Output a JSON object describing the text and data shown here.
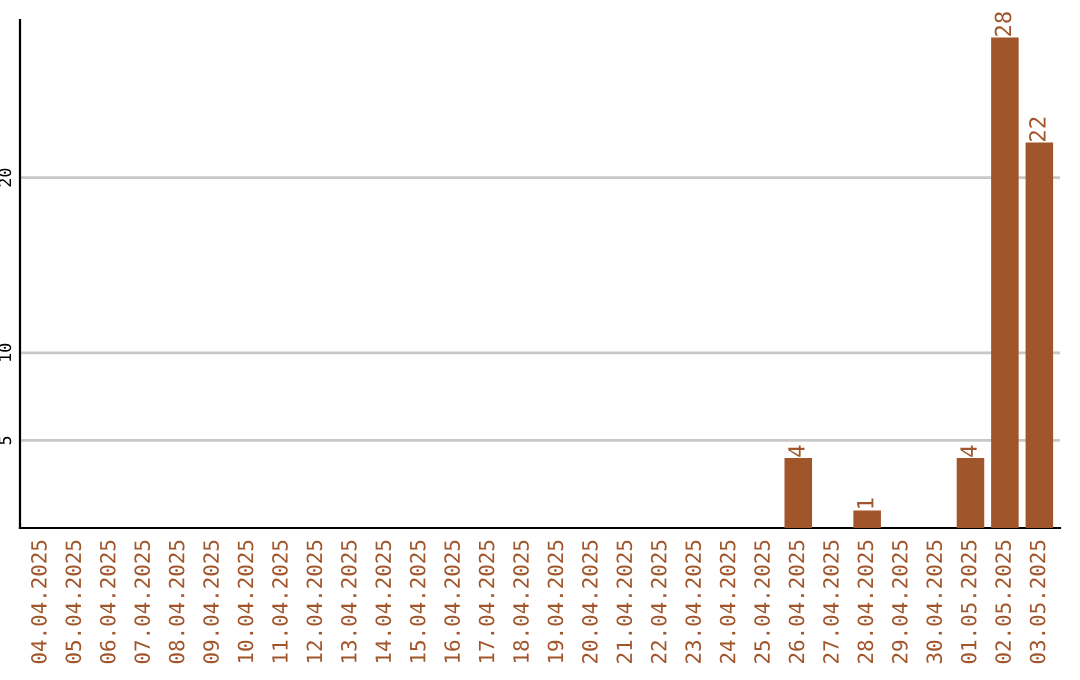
{
  "chart_data": {
    "type": "bar",
    "categories": [
      "04.04.2025",
      "05.04.2025",
      "06.04.2025",
      "07.04.2025",
      "08.04.2025",
      "09.04.2025",
      "10.04.2025",
      "11.04.2025",
      "12.04.2025",
      "13.04.2025",
      "14.04.2025",
      "15.04.2025",
      "16.04.2025",
      "17.04.2025",
      "18.04.2025",
      "19.04.2025",
      "20.04.2025",
      "21.04.2025",
      "22.04.2025",
      "23.04.2025",
      "24.04.2025",
      "25.04.2025",
      "26.04.2025",
      "27.04.2025",
      "28.04.2025",
      "29.04.2025",
      "30.04.2025",
      "01.05.2025",
      "02.05.2025",
      "03.05.2025"
    ],
    "values": [
      0,
      0,
      0,
      0,
      0,
      0,
      0,
      0,
      0,
      0,
      0,
      0,
      0,
      0,
      0,
      0,
      0,
      0,
      0,
      0,
      0,
      0,
      4,
      0,
      1,
      0,
      0,
      4,
      28,
      22
    ],
    "value_labels": [
      null,
      null,
      null,
      null,
      null,
      null,
      null,
      null,
      null,
      null,
      null,
      null,
      null,
      null,
      null,
      null,
      null,
      null,
      null,
      null,
      null,
      null,
      "4",
      null,
      "1",
      null,
      null,
      "4",
      "28",
      "22"
    ],
    "color": "#a0552a",
    "ylim": [
      0,
      29
    ],
    "yticks": [
      5,
      10,
      20
    ],
    "grid": "y"
  }
}
